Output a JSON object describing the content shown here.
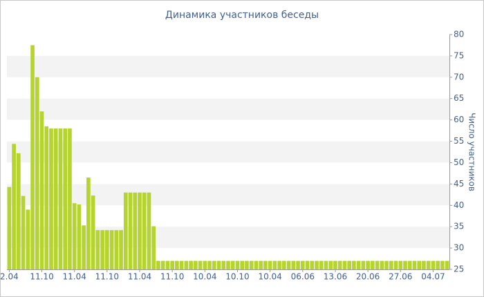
{
  "chart_data": {
    "type": "bar",
    "title": "Динамика участников беседы",
    "y_label": "Число участников",
    "categories": [
      "2.04",
      null,
      null,
      null,
      null,
      null,
      null,
      "11.10",
      null,
      null,
      null,
      null,
      null,
      null,
      "11.04",
      null,
      null,
      null,
      null,
      null,
      null,
      "11.10",
      null,
      null,
      null,
      null,
      null,
      null,
      "11.04",
      null,
      null,
      null,
      null,
      null,
      null,
      "11.10",
      null,
      null,
      null,
      null,
      null,
      null,
      "10.04",
      null,
      null,
      null,
      null,
      null,
      null,
      "10.10",
      null,
      null,
      null,
      null,
      null,
      null,
      "10.04",
      null,
      null,
      null,
      null,
      null,
      null,
      "06.06",
      null,
      null,
      null,
      null,
      null,
      null,
      "13.06",
      null,
      null,
      null,
      null,
      null,
      null,
      "20.06",
      null,
      null,
      null,
      null,
      null,
      null,
      "27.06",
      null,
      null,
      null,
      null,
      null,
      null,
      "04.07",
      null,
      null,
      null
    ],
    "values": [
      44.3,
      54.4,
      52.2,
      42.2,
      39,
      77.5,
      70,
      62,
      58.5,
      58,
      58,
      58,
      58,
      58,
      40.5,
      40.2,
      35.3,
      46.5,
      42.3,
      34.2,
      34.2,
      34.2,
      34.2,
      34.2,
      34.2,
      43,
      43,
      43,
      43,
      43,
      43,
      35.1,
      27,
      27,
      27,
      27,
      27,
      27,
      27,
      27,
      27,
      27,
      27,
      27,
      27,
      27,
      27,
      27,
      27,
      27,
      27,
      27,
      27,
      27,
      27,
      27,
      27,
      27,
      27,
      27,
      27,
      27,
      27,
      27,
      27,
      27,
      27,
      27,
      27,
      27,
      27,
      27,
      27,
      27,
      27,
      27,
      27,
      27,
      27,
      27,
      27,
      27,
      27,
      27,
      27,
      27,
      27,
      27,
      27,
      27,
      27,
      27,
      27,
      27,
      27
    ],
    "color": "#b6d430",
    "ylim": [
      25,
      80
    ],
    "yticks": [
      25,
      30,
      35,
      40,
      45,
      50,
      55,
      60,
      65,
      70,
      75,
      80
    ],
    "y_axis_side": "right",
    "grid": "bands",
    "band_color": "#f3f3f3"
  }
}
